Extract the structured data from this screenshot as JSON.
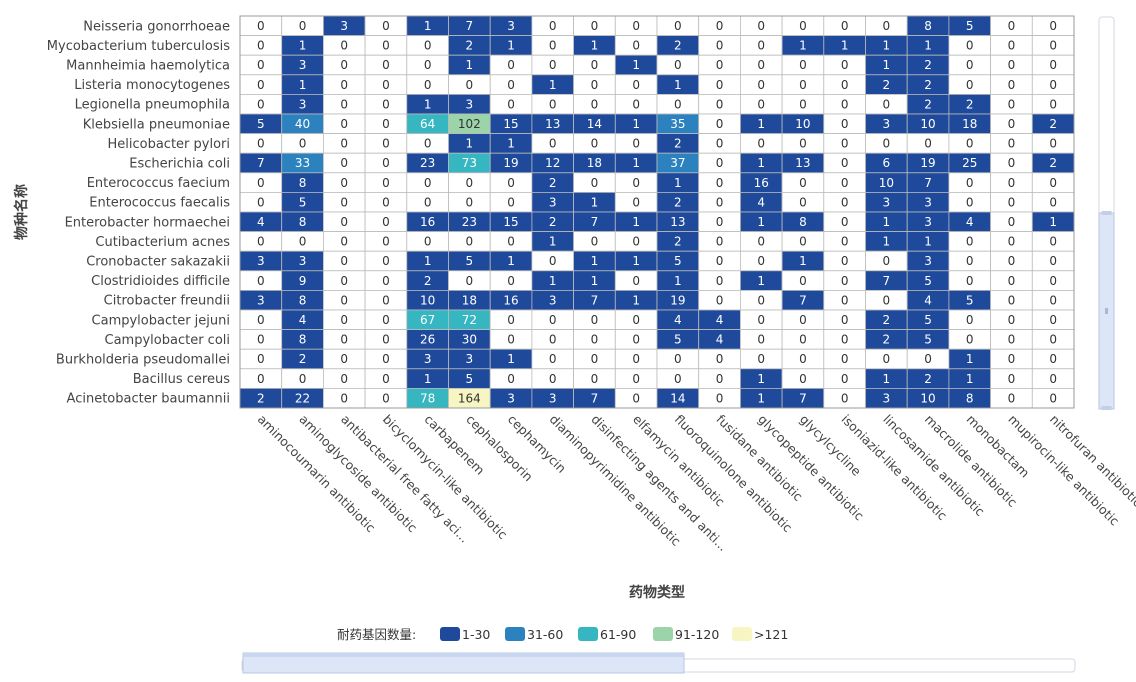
{
  "chart_data": {
    "type": "heatmap",
    "xlabel": "药物类型",
    "ylabel": "物种名称",
    "rows": [
      "Neisseria gonorrhoeae",
      "Mycobacterium tuberculosis",
      "Mannheimia haemolytica",
      "Listeria monocytogenes",
      "Legionella pneumophila",
      "Klebsiella pneumoniae",
      "Helicobacter pylori",
      "Escherichia coli",
      "Enterococcus faecium",
      "Enterococcus faecalis",
      "Enterobacter hormaechei",
      "Cutibacterium acnes",
      "Cronobacter sakazakii",
      "Clostridioides difficile",
      "Citrobacter freundii",
      "Campylobacter jejuni",
      "Campylobacter coli",
      "Burkholderia pseudomallei",
      "Bacillus cereus",
      "Acinetobacter baumannii"
    ],
    "columns": [
      "aminocoumarin antibiotic",
      "aminoglycoside antibiotic",
      "antibacterial free fatty aci...",
      "bicyclomycin-like antibiotic",
      "carbapenem",
      "cephalosporin",
      "cephamycin",
      "diaminopyrimidine antibiotic",
      "disinfecting agents and anti...",
      "elfamycin antibiotic",
      "fluoroquinolone antibiotic",
      "fusidane antibiotic",
      "glycopeptide antibiotic",
      "glycylcycline",
      "isoniazid-like antibiotic",
      "lincosamide antibiotic",
      "macrolide antibiotic",
      "monobactam",
      "mupirocin-like antibiotic",
      "nitrofuran antibiotic"
    ],
    "values": [
      [
        0,
        0,
        3,
        0,
        1,
        7,
        3,
        0,
        0,
        0,
        0,
        0,
        0,
        0,
        0,
        0,
        8,
        5,
        0,
        0
      ],
      [
        0,
        1,
        0,
        0,
        0,
        2,
        1,
        0,
        1,
        0,
        2,
        0,
        0,
        1,
        1,
        1,
        1,
        0,
        0,
        0
      ],
      [
        0,
        3,
        0,
        0,
        0,
        1,
        0,
        0,
        0,
        1,
        0,
        0,
        0,
        0,
        0,
        1,
        2,
        0,
        0,
        0
      ],
      [
        0,
        1,
        0,
        0,
        0,
        0,
        0,
        1,
        0,
        0,
        1,
        0,
        0,
        0,
        0,
        2,
        2,
        0,
        0,
        0
      ],
      [
        0,
        3,
        0,
        0,
        1,
        3,
        0,
        0,
        0,
        0,
        0,
        0,
        0,
        0,
        0,
        0,
        2,
        2,
        0,
        0
      ],
      [
        5,
        40,
        0,
        0,
        64,
        102,
        15,
        13,
        14,
        1,
        35,
        0,
        1,
        10,
        0,
        3,
        10,
        18,
        0,
        2
      ],
      [
        0,
        0,
        0,
        0,
        0,
        1,
        1,
        0,
        0,
        0,
        2,
        0,
        0,
        0,
        0,
        0,
        0,
        0,
        0,
        0
      ],
      [
        7,
        33,
        0,
        0,
        23,
        73,
        19,
        12,
        18,
        1,
        37,
        0,
        1,
        13,
        0,
        6,
        19,
        25,
        0,
        2
      ],
      [
        0,
        8,
        0,
        0,
        0,
        0,
        0,
        2,
        0,
        0,
        1,
        0,
        16,
        0,
        0,
        10,
        7,
        0,
        0,
        0
      ],
      [
        0,
        5,
        0,
        0,
        0,
        0,
        0,
        3,
        1,
        0,
        2,
        0,
        4,
        0,
        0,
        3,
        3,
        0,
        0,
        0
      ],
      [
        4,
        8,
        0,
        0,
        16,
        23,
        15,
        2,
        7,
        1,
        13,
        0,
        1,
        8,
        0,
        1,
        3,
        4,
        0,
        1
      ],
      [
        0,
        0,
        0,
        0,
        0,
        0,
        0,
        1,
        0,
        0,
        2,
        0,
        0,
        0,
        0,
        1,
        1,
        0,
        0,
        0
      ],
      [
        3,
        3,
        0,
        0,
        1,
        5,
        1,
        0,
        1,
        1,
        5,
        0,
        0,
        1,
        0,
        0,
        3,
        0,
        0,
        0
      ],
      [
        0,
        9,
        0,
        0,
        2,
        0,
        0,
        1,
        1,
        0,
        1,
        0,
        1,
        0,
        0,
        7,
        5,
        0,
        0,
        0
      ],
      [
        3,
        8,
        0,
        0,
        10,
        18,
        16,
        3,
        7,
        1,
        19,
        0,
        0,
        7,
        0,
        0,
        4,
        5,
        0,
        0
      ],
      [
        0,
        4,
        0,
        0,
        67,
        72,
        0,
        0,
        0,
        0,
        4,
        4,
        0,
        0,
        0,
        2,
        5,
        0,
        0,
        0
      ],
      [
        0,
        8,
        0,
        0,
        26,
        30,
        0,
        0,
        0,
        0,
        5,
        4,
        0,
        0,
        0,
        2,
        5,
        0,
        0,
        0
      ],
      [
        0,
        2,
        0,
        0,
        3,
        3,
        1,
        0,
        0,
        0,
        0,
        0,
        0,
        0,
        0,
        0,
        0,
        1,
        0,
        0
      ],
      [
        0,
        0,
        0,
        0,
        1,
        5,
        0,
        0,
        0,
        0,
        0,
        0,
        1,
        0,
        0,
        1,
        2,
        1,
        0,
        0
      ],
      [
        2,
        22,
        0,
        0,
        78,
        164,
        3,
        3,
        7,
        0,
        14,
        0,
        1,
        7,
        0,
        3,
        10,
        8,
        0,
        0
      ]
    ],
    "zero_color": "#ffffff",
    "legend": {
      "title": "耐药基因数量:",
      "position": "bottom",
      "pieces": [
        {
          "label": "1-30",
          "min": 1,
          "max": 30,
          "color": "#1f4a9c"
        },
        {
          "label": "31-60",
          "min": 31,
          "max": 60,
          "color": "#2b82be"
        },
        {
          "label": "61-90",
          "min": 61,
          "max": 90,
          "color": "#36b6c0"
        },
        {
          "label": "91-120",
          "min": 91,
          "max": 120,
          "color": "#9bd4a9"
        },
        {
          "label": ">121",
          "min": 121,
          "max": 100000,
          "color": "#f7f6c2"
        }
      ]
    },
    "grid": true
  }
}
